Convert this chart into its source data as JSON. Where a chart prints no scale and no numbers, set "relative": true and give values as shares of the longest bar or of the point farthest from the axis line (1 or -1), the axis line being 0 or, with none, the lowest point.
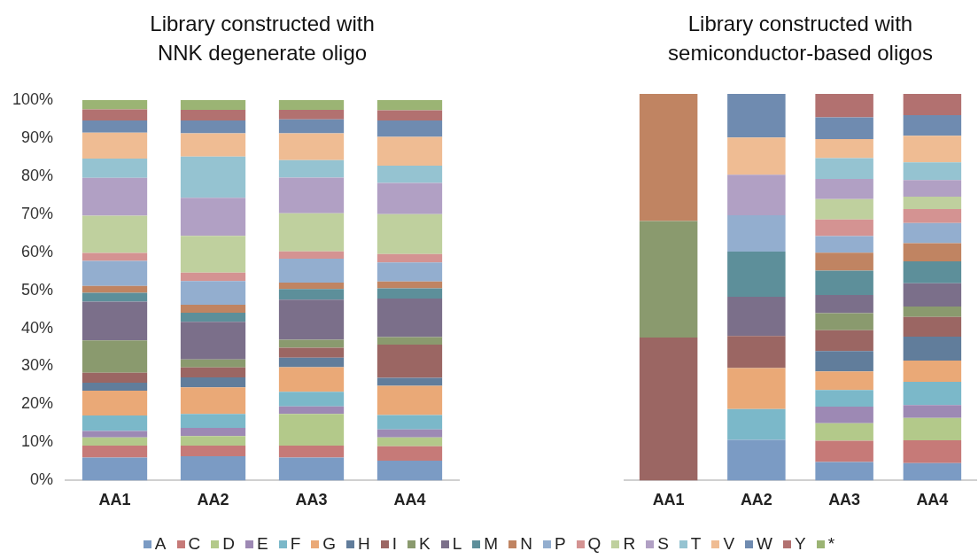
{
  "chart_data": [
    {
      "type": "bar",
      "title": "Library constructed with NNK degenerate oligo",
      "categories": [
        "AA1",
        "AA2",
        "AA3",
        "AA4"
      ],
      "stacked": true,
      "grid": false,
      "legend": "bottom",
      "ylim": [
        0,
        100
      ],
      "yticks": [
        {
          "value": 0,
          "label": "0%"
        },
        {
          "value": 10,
          "label": "10%"
        },
        {
          "value": 20,
          "label": "20%"
        },
        {
          "value": 30,
          "label": "30%"
        },
        {
          "value": 40,
          "label": "40%"
        },
        {
          "value": 50,
          "label": "50%"
        },
        {
          "value": 60,
          "label": "60%"
        },
        {
          "value": 70,
          "label": "70%"
        },
        {
          "value": 80,
          "label": "80%"
        },
        {
          "value": 90,
          "label": "90%"
        },
        {
          "value": 100,
          "label": "100%"
        }
      ],
      "series": [
        {
          "name": "A",
          "color": "#7b9bc4",
          "values": [
            6.0,
            6.4,
            6.0,
            5.2
          ]
        },
        {
          "name": "C",
          "color": "#c67a78",
          "values": [
            3.2,
            2.8,
            3.2,
            3.8
          ]
        },
        {
          "name": "D",
          "color": "#b3c98a",
          "values": [
            2.1,
            2.5,
            8.3,
            2.3
          ]
        },
        {
          "name": "E",
          "color": "#9d89b4",
          "values": [
            1.7,
            2.1,
            2.0,
            2.1
          ]
        },
        {
          "name": "F",
          "color": "#7bb8c9",
          "values": [
            4.1,
            3.7,
            3.8,
            3.8
          ]
        },
        {
          "name": "G",
          "color": "#eaa977",
          "values": [
            6.5,
            7.0,
            6.5,
            7.7
          ]
        },
        {
          "name": "H",
          "color": "#617d9b",
          "values": [
            2.1,
            2.6,
            2.5,
            2.1
          ]
        },
        {
          "name": "I",
          "color": "#9b6663",
          "values": [
            2.6,
            2.6,
            2.6,
            8.7
          ]
        },
        {
          "name": "K",
          "color": "#8a9a6e",
          "values": [
            8.5,
            2.1,
            2.1,
            2.0
          ]
        },
        {
          "name": "L",
          "color": "#7b6f8a",
          "values": [
            10.2,
            9.9,
            10.5,
            10.1
          ]
        },
        {
          "name": "M",
          "color": "#5d8f9a",
          "values": [
            2.3,
            2.4,
            2.8,
            2.7
          ]
        },
        {
          "name": "N",
          "color": "#c08462",
          "values": [
            1.8,
            2.1,
            1.7,
            1.8
          ]
        },
        {
          "name": "P",
          "color": "#93aecf",
          "values": [
            6.6,
            6.2,
            6.3,
            5.0
          ]
        },
        {
          "name": "Q",
          "color": "#d49392",
          "values": [
            2.1,
            2.2,
            1.9,
            2.2
          ]
        },
        {
          "name": "R",
          "color": "#bfd09e",
          "values": [
            9.8,
            9.7,
            10.0,
            10.5
          ]
        },
        {
          "name": "S",
          "color": "#b1a0c4",
          "values": [
            9.9,
            10.0,
            9.4,
            8.2
          ]
        },
        {
          "name": "T",
          "color": "#95c3d1",
          "values": [
            5.1,
            10.8,
            4.6,
            4.5
          ]
        },
        {
          "name": "V",
          "color": "#efbc93",
          "values": [
            6.8,
            6.1,
            7.0,
            7.6
          ]
        },
        {
          "name": "W",
          "color": "#6f8bb0",
          "values": [
            3.2,
            3.4,
            3.7,
            4.3
          ]
        },
        {
          "name": "Y",
          "color": "#b27170",
          "values": [
            2.9,
            2.8,
            2.5,
            2.7
          ]
        },
        {
          "name": "*",
          "color": "#9bb474",
          "values": [
            2.5,
            2.6,
            2.6,
            2.7
          ]
        }
      ]
    },
    {
      "type": "bar",
      "title": "Library constructed with semiconductor-based oligos",
      "categories": [
        "AA1",
        "AA2",
        "AA3",
        "AA4"
      ],
      "stacked": true,
      "relative": true,
      "grid": false,
      "series": [
        {
          "name": "A",
          "color": "#7b9bc4",
          "values": [
            0,
            0.105,
            0.048,
            0.045
          ]
        },
        {
          "name": "C",
          "color": "#c67a78",
          "values": [
            0,
            0,
            0.055,
            0.059
          ]
        },
        {
          "name": "D",
          "color": "#b3c98a",
          "values": [
            0,
            0,
            0.045,
            0.058
          ]
        },
        {
          "name": "E",
          "color": "#9d89b4",
          "values": [
            0,
            0,
            0.043,
            0.033
          ]
        },
        {
          "name": "F",
          "color": "#7bb8c9",
          "values": [
            0,
            0.08,
            0.043,
            0.06
          ]
        },
        {
          "name": "G",
          "color": "#eaa977",
          "values": [
            0,
            0.106,
            0.048,
            0.055
          ]
        },
        {
          "name": "H",
          "color": "#617d9b",
          "values": [
            0,
            0,
            0.053,
            0.062
          ]
        },
        {
          "name": "I",
          "color": "#9b6663",
          "values": [
            0.37,
            0.083,
            0.054,
            0.051
          ]
        },
        {
          "name": "K",
          "color": "#8a9a6e",
          "values": [
            0.301,
            0,
            0.044,
            0.027
          ]
        },
        {
          "name": "L",
          "color": "#7b6f8a",
          "values": [
            0,
            0.101,
            0.047,
            0.06
          ]
        },
        {
          "name": "M",
          "color": "#5d8f9a",
          "values": [
            0,
            0.117,
            0.063,
            0.057
          ]
        },
        {
          "name": "N",
          "color": "#c08462",
          "values": [
            0.329,
            0,
            0.046,
            0.047
          ]
        },
        {
          "name": "P",
          "color": "#93aecf",
          "values": [
            0,
            0.094,
            0.043,
            0.052
          ]
        },
        {
          "name": "Q",
          "color": "#d49392",
          "values": [
            0,
            0,
            0.043,
            0.036
          ]
        },
        {
          "name": "R",
          "color": "#bfd09e",
          "values": [
            0,
            0,
            0.053,
            0.032
          ]
        },
        {
          "name": "S",
          "color": "#b1a0c4",
          "values": [
            0,
            0.105,
            0.052,
            0.043
          ]
        },
        {
          "name": "T",
          "color": "#95c3d1",
          "values": [
            0,
            0,
            0.054,
            0.046
          ]
        },
        {
          "name": "V",
          "color": "#efbc93",
          "values": [
            0,
            0.096,
            0.049,
            0.069
          ]
        },
        {
          "name": "W",
          "color": "#6f8bb0",
          "values": [
            0,
            0.113,
            0.056,
            0.053
          ]
        },
        {
          "name": "Y",
          "color": "#b27170",
          "values": [
            0,
            0,
            0.061,
            0.055
          ]
        },
        {
          "name": "*",
          "color": "#9bb474",
          "values": [
            0,
            0,
            0,
            0
          ]
        }
      ]
    }
  ]
}
